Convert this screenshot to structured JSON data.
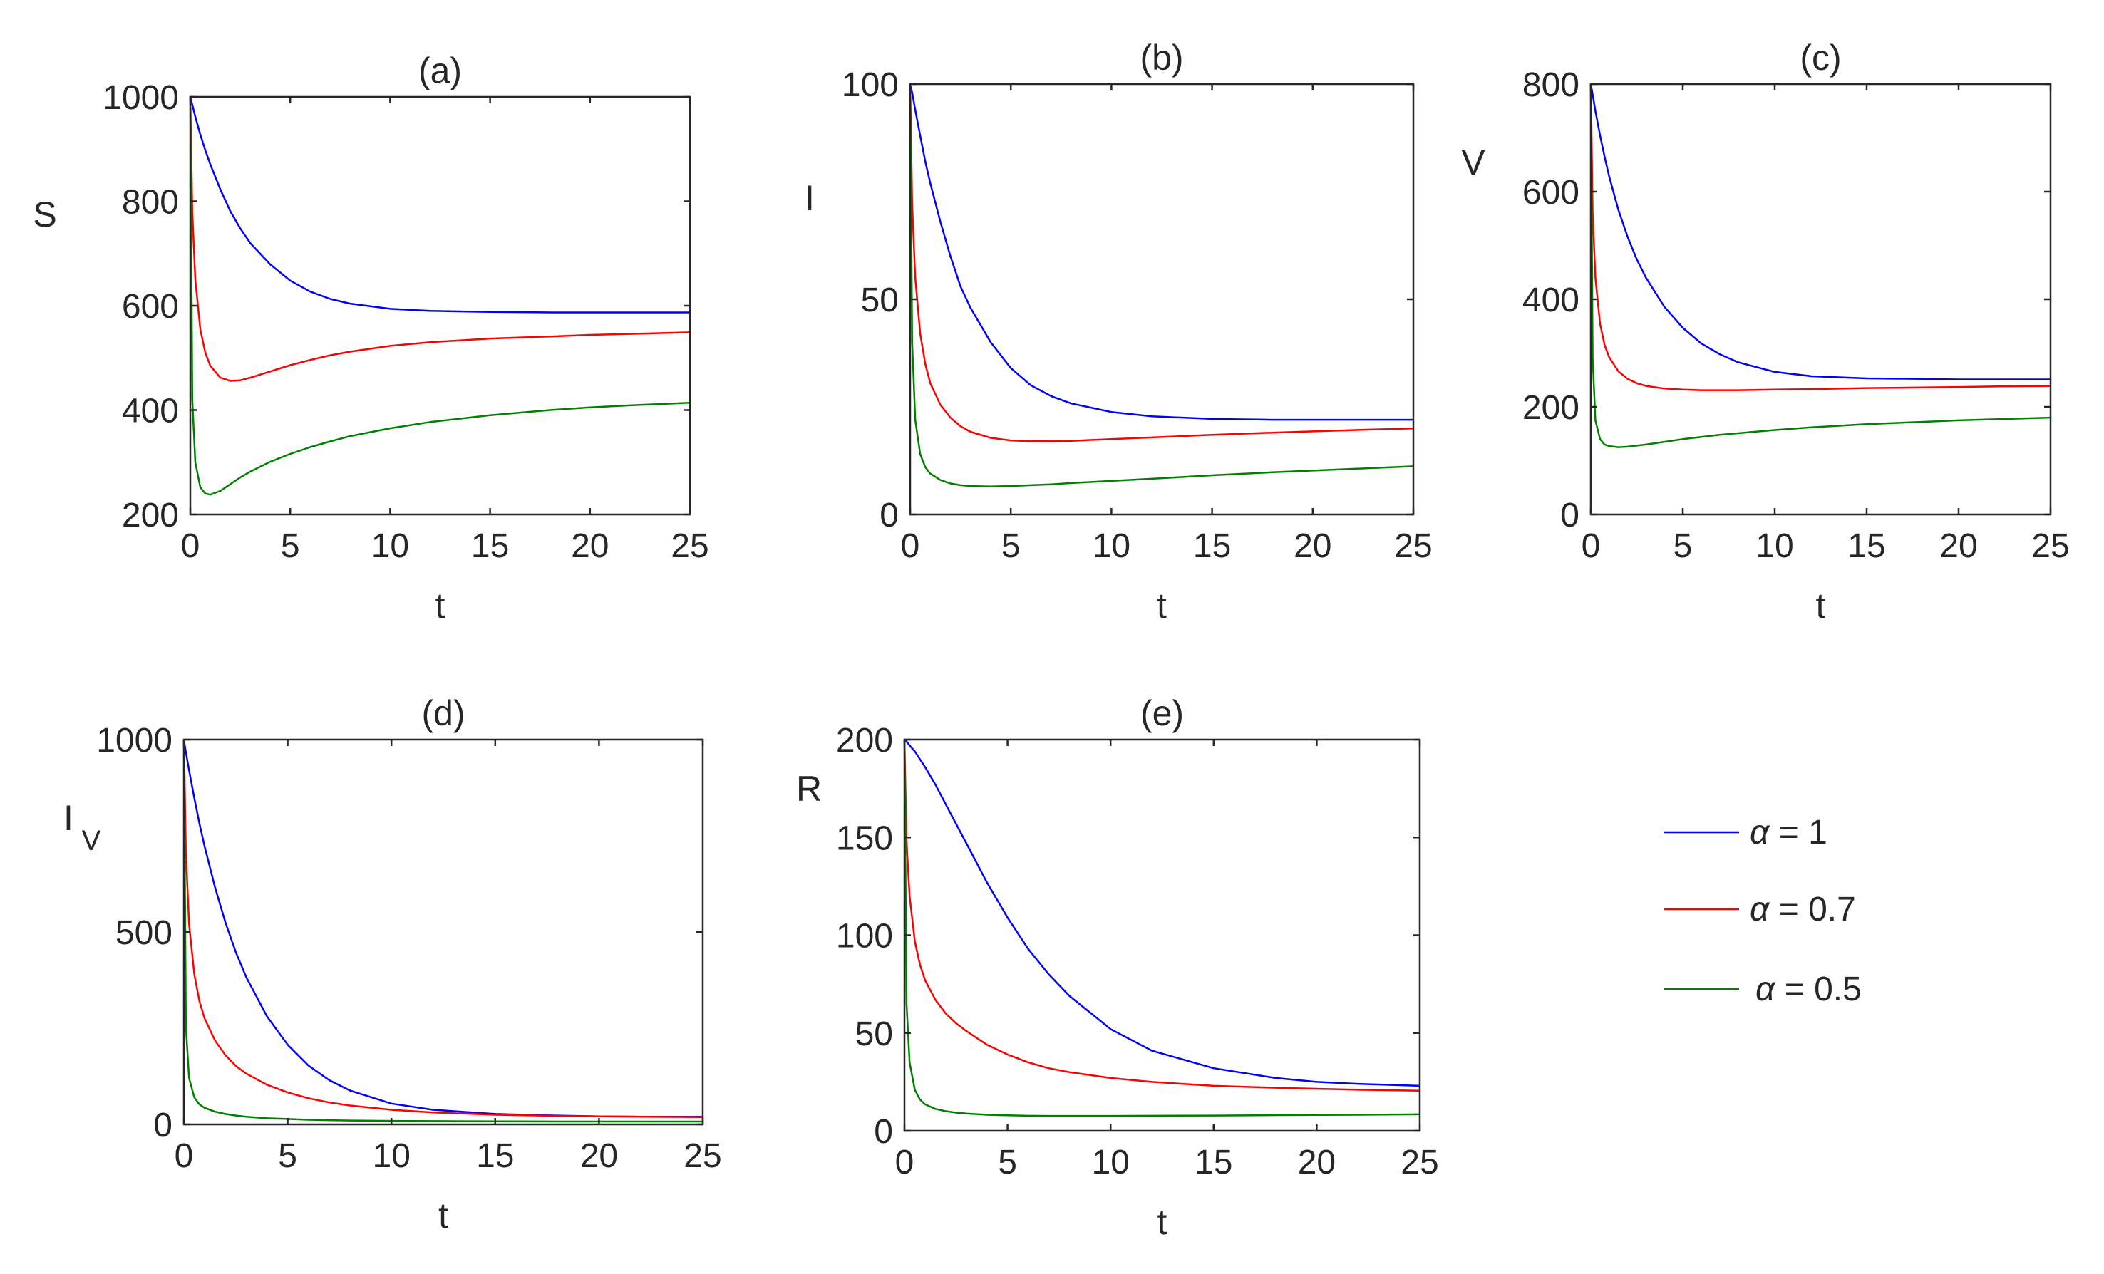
{
  "chart_data": [
    {
      "type": "line",
      "title": "(a)",
      "xlabel": "t",
      "ylabel": "S",
      "xlim": [
        0,
        25
      ],
      "ylim": [
        200,
        1000
      ],
      "xticks": [
        "0",
        "5",
        "10",
        "15",
        "20",
        "25"
      ],
      "yticks": [
        "200",
        "400",
        "600",
        "800",
        "1000"
      ],
      "grid": false,
      "x": [
        0,
        0.1,
        0.25,
        0.5,
        0.75,
        1,
        1.5,
        2,
        2.5,
        3,
        4,
        5,
        6,
        7,
        8,
        10,
        12,
        15,
        18,
        20,
        22,
        25
      ],
      "series": [
        {
          "name": "α = 1",
          "color": "#0000ff",
          "values": [
            1000,
            985,
            962,
            928,
            898,
            871,
            823,
            781,
            748,
            720,
            679,
            648,
            627,
            613,
            604,
            594,
            590,
            588,
            587,
            587,
            587,
            587
          ]
        },
        {
          "name": "α = 0.7",
          "color": "#ff0000",
          "values": [
            1000,
            780,
            650,
            555,
            510,
            485,
            462,
            456,
            457,
            462,
            474,
            486,
            496,
            505,
            512,
            523,
            530,
            537,
            541,
            544,
            546,
            549
          ]
        },
        {
          "name": "α = 0.5",
          "color": "#008000",
          "values": [
            1000,
            420,
            300,
            252,
            240,
            238,
            245,
            258,
            271,
            282,
            301,
            316,
            329,
            340,
            350,
            365,
            377,
            390,
            400,
            405,
            409,
            414
          ]
        }
      ]
    },
    {
      "type": "line",
      "title": "(b)",
      "xlabel": "t",
      "ylabel": "I",
      "xlim": [
        0,
        25
      ],
      "ylim": [
        0,
        100
      ],
      "xticks": [
        "0",
        "5",
        "10",
        "15",
        "20",
        "25"
      ],
      "yticks": [
        "0",
        "50",
        "100"
      ],
      "grid": false,
      "x": [
        0,
        0.1,
        0.25,
        0.5,
        0.75,
        1,
        1.5,
        2,
        2.5,
        3,
        4,
        5,
        6,
        7,
        8,
        10,
        12,
        15,
        18,
        20,
        22,
        25
      ],
      "series": [
        {
          "name": "α = 1",
          "color": "#0000ff",
          "values": [
            100,
            98,
            94,
            88,
            82,
            77,
            68,
            60,
            53,
            48,
            40,
            34,
            30,
            27.5,
            25.8,
            23.8,
            22.8,
            22.2,
            22,
            22,
            22,
            22
          ]
        },
        {
          "name": "α = 0.7",
          "color": "#ff0000",
          "values": [
            100,
            72,
            55,
            42,
            35,
            30.5,
            25.5,
            22.5,
            20.5,
            19.2,
            17.8,
            17.2,
            17,
            17,
            17.1,
            17.5,
            17.9,
            18.5,
            19,
            19.3,
            19.6,
            20
          ]
        },
        {
          "name": "α = 0.5",
          "color": "#008000",
          "values": [
            100,
            40,
            22,
            14,
            11,
            9.5,
            8,
            7.2,
            6.8,
            6.6,
            6.5,
            6.6,
            6.8,
            7,
            7.3,
            7.8,
            8.3,
            9.1,
            9.8,
            10.2,
            10.6,
            11.2
          ]
        }
      ]
    },
    {
      "type": "line",
      "title": "(c)",
      "xlabel": "t",
      "ylabel": "V",
      "xlim": [
        0,
        25
      ],
      "ylim": [
        0,
        800
      ],
      "xticks": [
        "0",
        "5",
        "10",
        "15",
        "20",
        "25"
      ],
      "yticks": [
        "0",
        "200",
        "400",
        "600",
        "800"
      ],
      "grid": false,
      "x": [
        0,
        0.1,
        0.25,
        0.5,
        0.75,
        1,
        1.5,
        2,
        2.5,
        3,
        4,
        5,
        6,
        7,
        8,
        10,
        12,
        15,
        18,
        20,
        22,
        25
      ],
      "series": [
        {
          "name": "α = 1",
          "color": "#0000ff",
          "values": [
            800,
            780,
            750,
            705,
            665,
            628,
            566,
            516,
            474,
            440,
            386,
            347,
            318,
            298,
            283,
            265,
            257,
            253,
            252,
            251,
            251,
            251
          ]
        },
        {
          "name": "α = 0.7",
          "color": "#ff0000",
          "values": [
            800,
            560,
            440,
            355,
            315,
            292,
            266,
            252,
            244,
            239,
            234,
            232,
            231,
            231,
            231,
            232,
            233,
            235,
            236,
            237,
            238,
            239
          ]
        },
        {
          "name": "α = 0.5",
          "color": "#008000",
          "values": [
            800,
            290,
            175,
            140,
            130,
            127,
            125,
            126,
            128,
            130,
            135,
            140,
            144,
            148,
            151,
            157,
            162,
            168,
            172,
            175,
            177,
            180
          ]
        }
      ]
    },
    {
      "type": "line",
      "title": "(d)",
      "xlabel": "t",
      "ylabel": "I",
      "ylabel_subscript": "V",
      "xlim": [
        0,
        25
      ],
      "ylim": [
        0,
        1000
      ],
      "xticks": [
        "0",
        "5",
        "10",
        "15",
        "20",
        "25"
      ],
      "yticks": [
        "0",
        "500",
        "1000"
      ],
      "grid": false,
      "x": [
        0,
        0.1,
        0.25,
        0.5,
        0.75,
        1,
        1.5,
        2,
        2.5,
        3,
        4,
        5,
        6,
        7,
        8,
        10,
        12,
        15,
        18,
        20,
        22,
        25
      ],
      "series": [
        {
          "name": "α = 1",
          "color": "#0000ff",
          "values": [
            1000,
            966,
            920,
            848,
            782,
            722,
            616,
            525,
            448,
            383,
            281,
            207,
            153,
            115,
            88,
            54,
            38,
            27,
            23,
            21,
            20,
            20
          ]
        },
        {
          "name": "α = 0.7",
          "color": "#ff0000",
          "values": [
            1000,
            700,
            520,
            390,
            320,
            275,
            218,
            180,
            152,
            132,
            103,
            83,
            68,
            57,
            49,
            38,
            31,
            25,
            22,
            21,
            20,
            19
          ]
        },
        {
          "name": "α = 0.5",
          "color": "#008000",
          "values": [
            1000,
            250,
            120,
            70,
            52,
            43,
            33,
            27,
            23,
            20,
            16,
            14,
            12,
            11,
            10,
            9,
            8.5,
            8,
            7.5,
            7.5,
            7.5,
            7.5
          ]
        }
      ]
    },
    {
      "type": "line",
      "title": "(e)",
      "xlabel": "t",
      "ylabel": "R",
      "xlim": [
        0,
        25
      ],
      "ylim": [
        0,
        200
      ],
      "xticks": [
        "0",
        "5",
        "10",
        "15",
        "20",
        "25"
      ],
      "yticks": [
        "0",
        "50",
        "100",
        "150",
        "200"
      ],
      "grid": false,
      "x": [
        0,
        0.1,
        0.25,
        0.5,
        0.75,
        1,
        1.5,
        2,
        2.5,
        3,
        4,
        5,
        6,
        7,
        8,
        10,
        12,
        15,
        18,
        20,
        22,
        25
      ],
      "series": [
        {
          "name": "α = 1",
          "color": "#0000ff",
          "values": [
            200,
            199,
            197,
            194,
            190,
            186,
            177,
            167,
            157,
            147,
            127,
            109,
            93,
            80,
            69,
            52,
            41,
            32,
            27,
            25,
            24,
            23
          ]
        },
        {
          "name": "α = 0.7",
          "color": "#ff0000",
          "values": [
            200,
            148,
            120,
            97,
            85,
            77,
            67,
            60,
            55,
            51,
            44,
            39,
            35,
            32,
            30,
            27,
            25,
            23,
            22,
            21.5,
            21,
            20.5
          ]
        },
        {
          "name": "α = 0.5",
          "color": "#008000",
          "values": [
            200,
            65,
            35,
            21,
            16,
            13.5,
            11.2,
            10,
            9.3,
            8.8,
            8.2,
            7.9,
            7.7,
            7.6,
            7.6,
            7.6,
            7.7,
            7.8,
            8,
            8.1,
            8.2,
            8.4
          ]
        }
      ]
    }
  ],
  "legend": {
    "position": "right",
    "entries": [
      {
        "symbol": "α",
        "text": " = 1",
        "color": "#0000ff"
      },
      {
        "symbol": "α",
        "text": " = 0.7",
        "color": "#ff0000"
      },
      {
        "symbol": "α",
        "text": " = 0.5",
        "color": "#008000"
      }
    ]
  }
}
